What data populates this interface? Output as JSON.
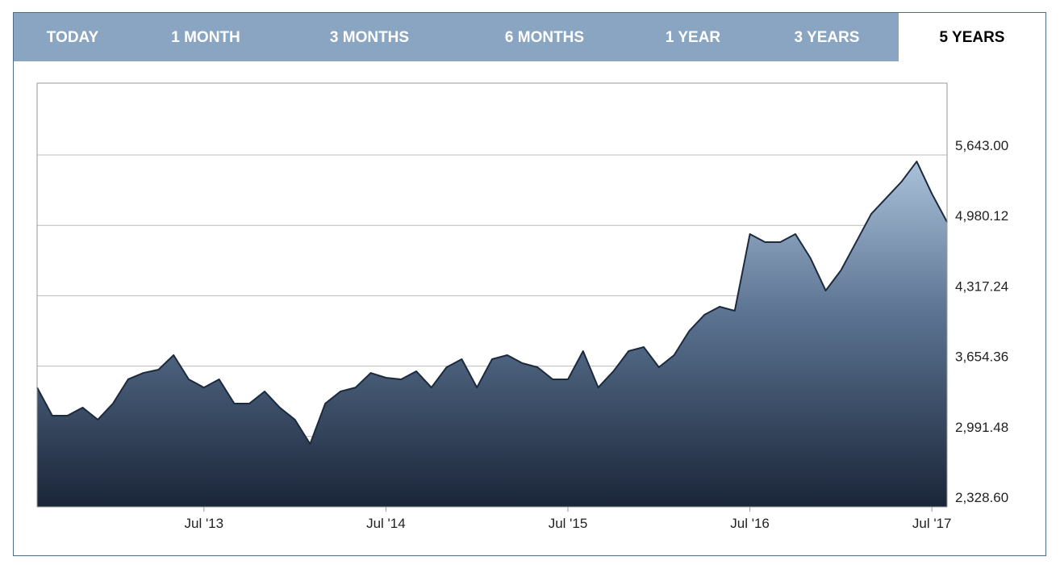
{
  "tabs": [
    "TODAY",
    "1 MONTH",
    "3 MONTHS",
    "6 MONTHS",
    "1 YEAR",
    "3 YEARS",
    "5 YEARS"
  ],
  "chart_data": {
    "type": "area",
    "color": "#1c2a3e",
    "x": [
      "2012-08",
      "2012-09",
      "2012-10",
      "2012-11",
      "2012-12",
      "2013-01",
      "2013-02",
      "2013-03",
      "2013-04",
      "2013-05",
      "2013-06",
      "2013-07",
      "2013-08",
      "2013-09",
      "2013-10",
      "2013-11",
      "2013-12",
      "2014-01",
      "2014-02",
      "2014-03",
      "2014-04",
      "2014-05",
      "2014-06",
      "2014-07",
      "2014-08",
      "2014-09",
      "2014-10",
      "2014-11",
      "2014-12",
      "2015-01",
      "2015-02",
      "2015-03",
      "2015-04",
      "2015-05",
      "2015-06",
      "2015-07",
      "2015-08",
      "2015-09",
      "2015-10",
      "2015-11",
      "2015-12",
      "2016-01",
      "2016-02",
      "2016-03",
      "2016-04",
      "2016-05",
      "2016-06",
      "2016-07",
      "2016-08",
      "2016-09",
      "2016-10",
      "2016-11",
      "2016-12",
      "2017-01",
      "2017-02",
      "2017-03",
      "2017-04",
      "2017-05",
      "2017-06",
      "2017-07",
      "2017-08"
    ],
    "values": [
      3453,
      3188,
      3188,
      3264,
      3150,
      3302,
      3530,
      3590,
      3621,
      3758,
      3530,
      3453,
      3530,
      3302,
      3302,
      3416,
      3264,
      3150,
      2921,
      3302,
      3416,
      3453,
      3590,
      3545,
      3530,
      3606,
      3453,
      3644,
      3720,
      3453,
      3720,
      3758,
      3682,
      3644,
      3530,
      3530,
      3796,
      3453,
      3606,
      3796,
      3834,
      3644,
      3758,
      3986,
      4138,
      4214,
      4176,
      4898,
      4822,
      4822,
      4898,
      4670,
      4366,
      4556,
      4822,
      5088,
      5240,
      5392,
      5582,
      5278,
      5012
    ],
    "xlim": [
      "2012-08",
      "2017-08"
    ],
    "xticks": [
      {
        "value": "2013-07",
        "label": "Jul '13"
      },
      {
        "value": "2014-07",
        "label": "Jul '14"
      },
      {
        "value": "2015-07",
        "label": "Jul '15"
      },
      {
        "value": "2016-07",
        "label": "Jul '16"
      },
      {
        "value": "2017-07",
        "label": "Jul '17"
      }
    ],
    "ylim": [
      2328.6,
      6320
    ],
    "yticks": [
      {
        "value": 2328.6,
        "label": "2,328.60"
      },
      {
        "value": 2991.48,
        "label": "2,991.48"
      },
      {
        "value": 3654.36,
        "label": "3,654.36"
      },
      {
        "value": 4317.24,
        "label": "4,317.24"
      },
      {
        "value": 4980.12,
        "label": "4,980.12"
      },
      {
        "value": 5643,
        "label": "5,643.00"
      }
    ],
    "grid": true
  }
}
